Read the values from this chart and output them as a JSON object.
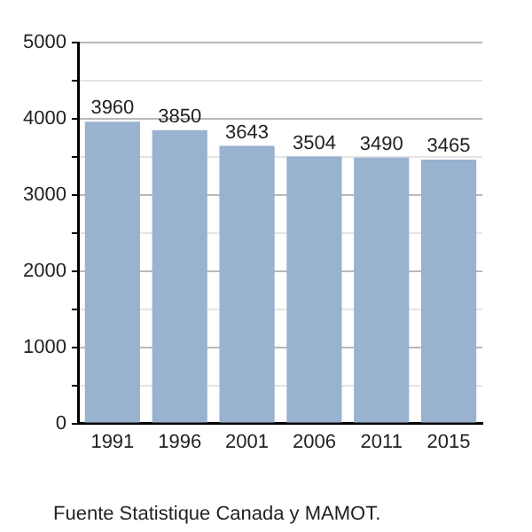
{
  "chart_data": {
    "type": "bar",
    "categories": [
      "1991",
      "1996",
      "2001",
      "2006",
      "2011",
      "2015"
    ],
    "values": [
      3960,
      3850,
      3643,
      3504,
      3490,
      3465
    ],
    "color": "#98b2cf",
    "ylim": [
      0,
      5000
    ],
    "yticks": [
      0,
      {
        "value": 500,
        "label": null
      },
      1000,
      {
        "value": 1500,
        "label": null
      },
      2000,
      {
        "value": 2500,
        "label": null
      },
      3000,
      {
        "value": 3500,
        "label": null
      },
      4000,
      {
        "value": 4500,
        "label": null
      },
      5000
    ],
    "grid": "y",
    "legend": false,
    "data_labels": true,
    "annotations": [
      "Fuente Statistique Canada y MAMOT."
    ]
  }
}
